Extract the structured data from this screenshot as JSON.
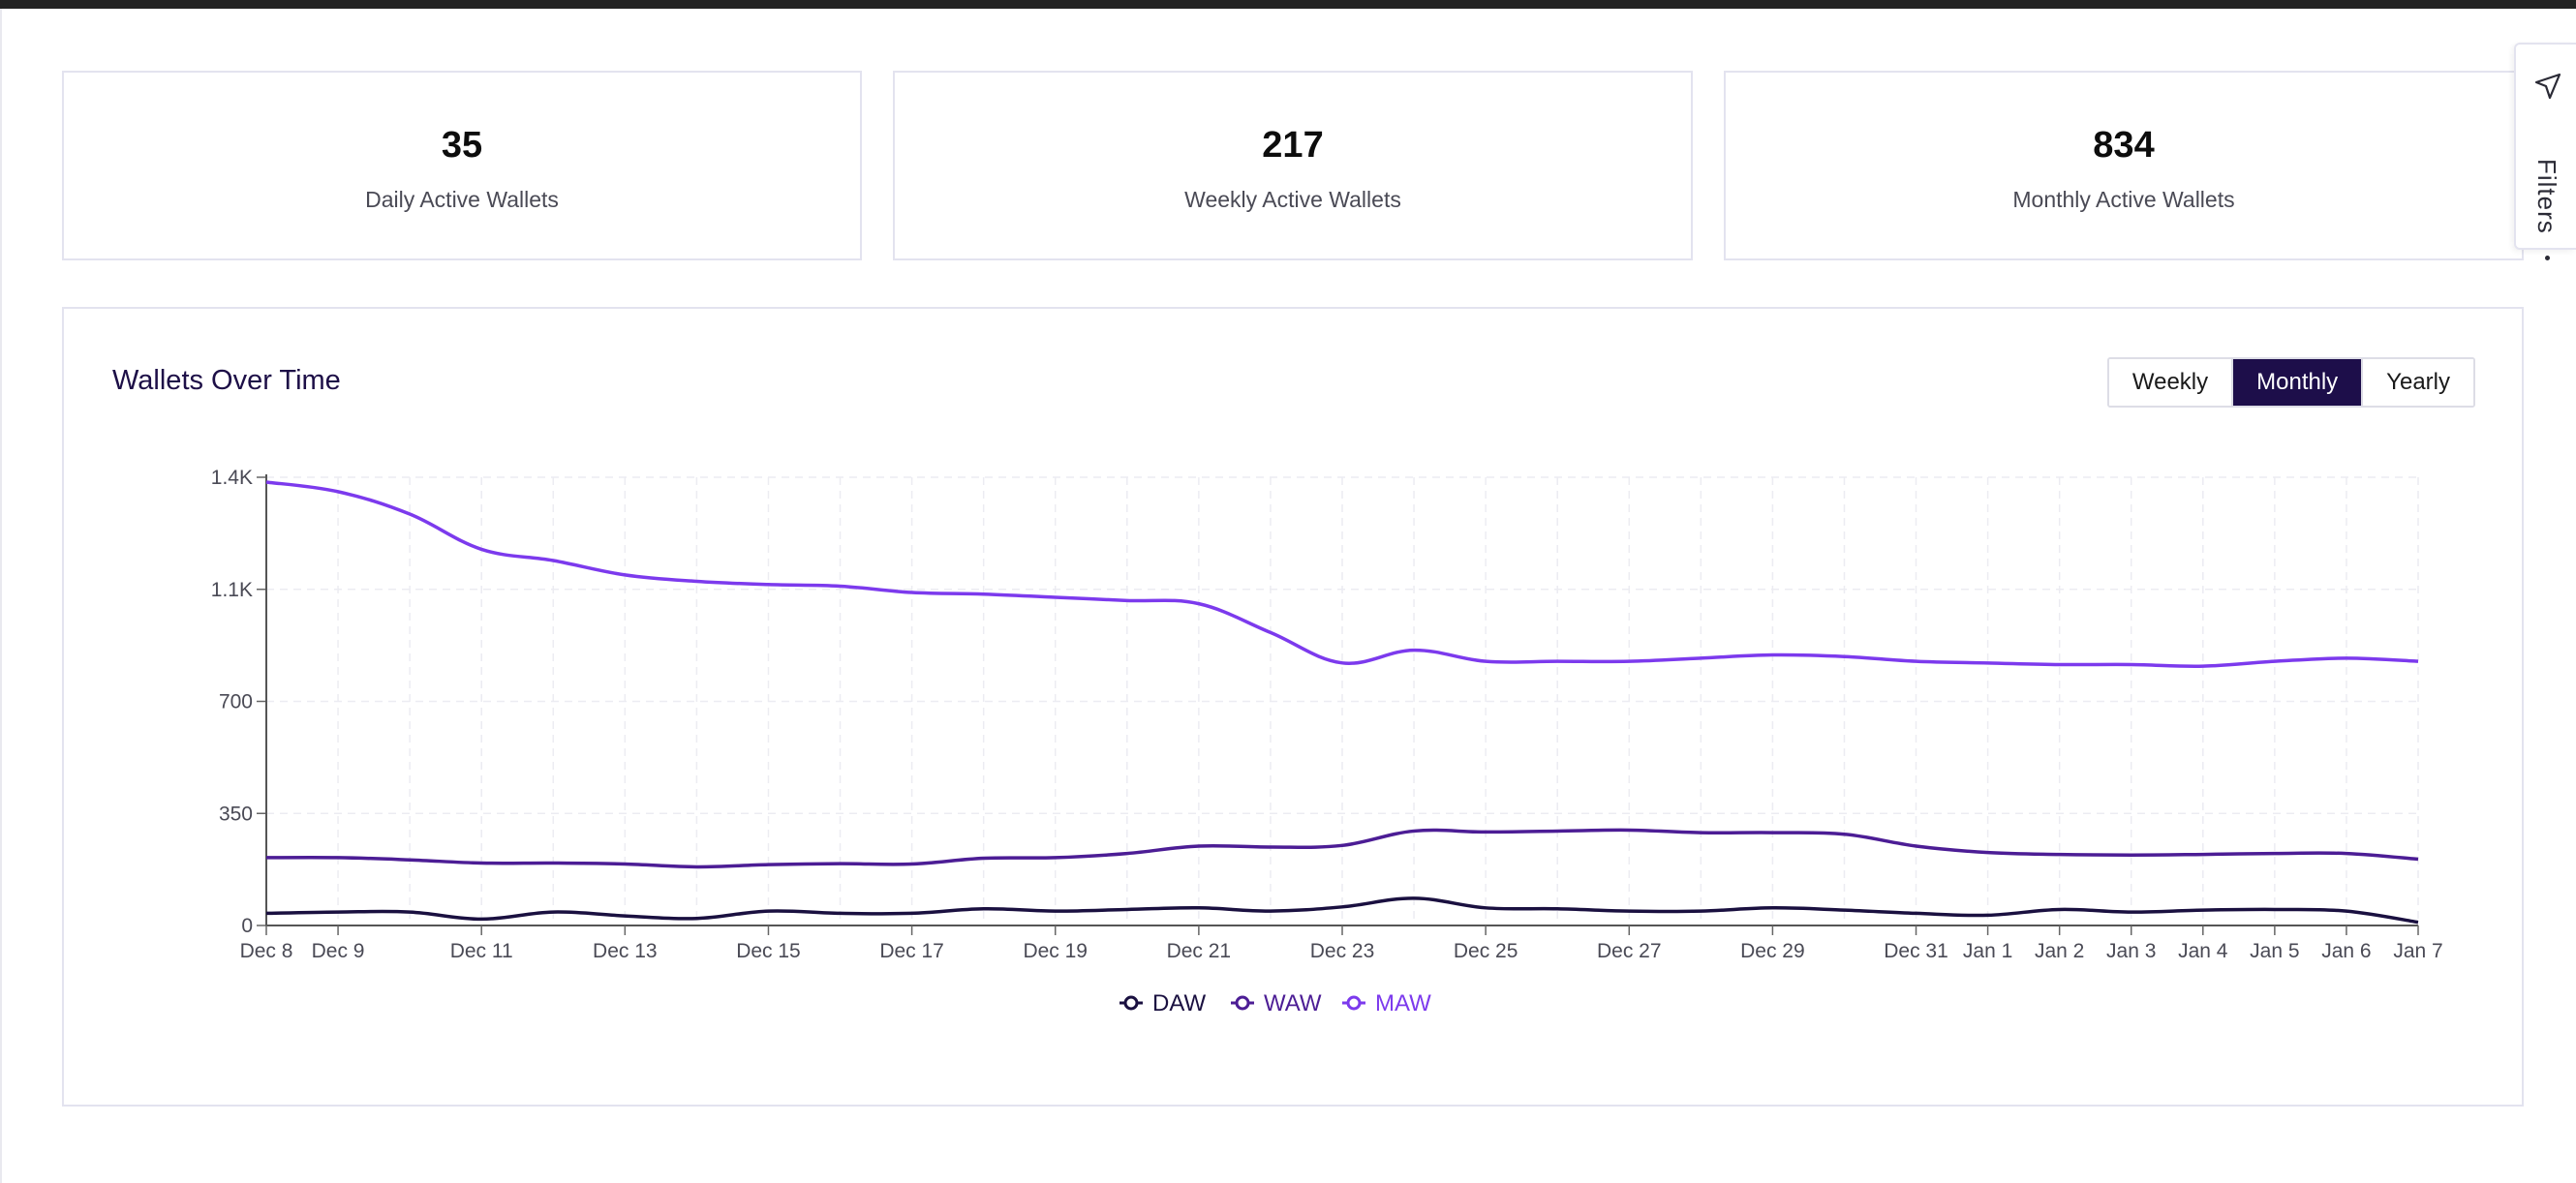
{
  "stats": [
    {
      "value": "35",
      "label": "Daily Active Wallets"
    },
    {
      "value": "217",
      "label": "Weekly Active Wallets"
    },
    {
      "value": "834",
      "label": "Monthly Active Wallets"
    }
  ],
  "filters": {
    "label": "Filters",
    "icon": "filter-funnel-icon"
  },
  "chart_card": {
    "title": "Wallets Over Time",
    "range_buttons": [
      {
        "label": "Weekly",
        "active": false
      },
      {
        "label": "Monthly",
        "active": true
      },
      {
        "label": "Yearly",
        "active": false
      }
    ]
  },
  "colors": {
    "daw": "#1a1040",
    "waw": "#4c1d95",
    "maw": "#7c3aed",
    "active_button": "#1d0e4a"
  },
  "chart_data": {
    "type": "line",
    "title": "Wallets Over Time",
    "x": [
      "Dec 8",
      "Dec 9",
      "Dec 10",
      "Dec 11",
      "Dec 12",
      "Dec 13",
      "Dec 14",
      "Dec 15",
      "Dec 16",
      "Dec 17",
      "Dec 18",
      "Dec 19",
      "Dec 20",
      "Dec 21",
      "Dec 22",
      "Dec 23",
      "Dec 24",
      "Dec 25",
      "Dec 26",
      "Dec 27",
      "Dec 28",
      "Dec 29",
      "Dec 30",
      "Dec 31",
      "Jan 1",
      "Jan 2",
      "Jan 3",
      "Jan 4",
      "Jan 5",
      "Jan 6",
      "Jan 7"
    ],
    "x_tick_labels": [
      "Dec 8",
      "Dec 9",
      "Dec 11",
      "Dec 13",
      "Dec 15",
      "Dec 17",
      "Dec 19",
      "Dec 21",
      "Dec 23",
      "Dec 25",
      "Dec 27",
      "Dec 29",
      "Dec 31",
      "Jan 1",
      "Jan 2",
      "Jan 3",
      "Jan 4",
      "Jan 5",
      "Jan 6",
      "Jan 7"
    ],
    "y_ticks": [
      0,
      350,
      700,
      1050,
      1400
    ],
    "y_tick_labels": [
      "0",
      "350",
      "700",
      "1.1K",
      "1.4K"
    ],
    "ylim": [
      0,
      1400
    ],
    "grid": true,
    "legend_position": "bottom-center",
    "series": [
      {
        "name": "DAW",
        "values": [
          38,
          42,
          42,
          20,
          42,
          30,
          22,
          45,
          38,
          38,
          52,
          45,
          50,
          55,
          45,
          58,
          85,
          55,
          52,
          45,
          45,
          55,
          48,
          38,
          32,
          50,
          42,
          48,
          50,
          45,
          10
        ]
      },
      {
        "name": "WAW",
        "values": [
          212,
          212,
          205,
          195,
          195,
          192,
          183,
          190,
          193,
          192,
          210,
          212,
          225,
          248,
          245,
          250,
          295,
          292,
          295,
          298,
          290,
          290,
          285,
          248,
          228,
          222,
          220,
          222,
          225,
          225,
          207
        ]
      },
      {
        "name": "MAW",
        "values": [
          1385,
          1355,
          1285,
          1175,
          1140,
          1095,
          1075,
          1065,
          1060,
          1040,
          1035,
          1025,
          1015,
          1005,
          915,
          820,
          860,
          825,
          825,
          825,
          835,
          845,
          840,
          825,
          820,
          815,
          815,
          810,
          825,
          835,
          825
        ]
      }
    ]
  }
}
